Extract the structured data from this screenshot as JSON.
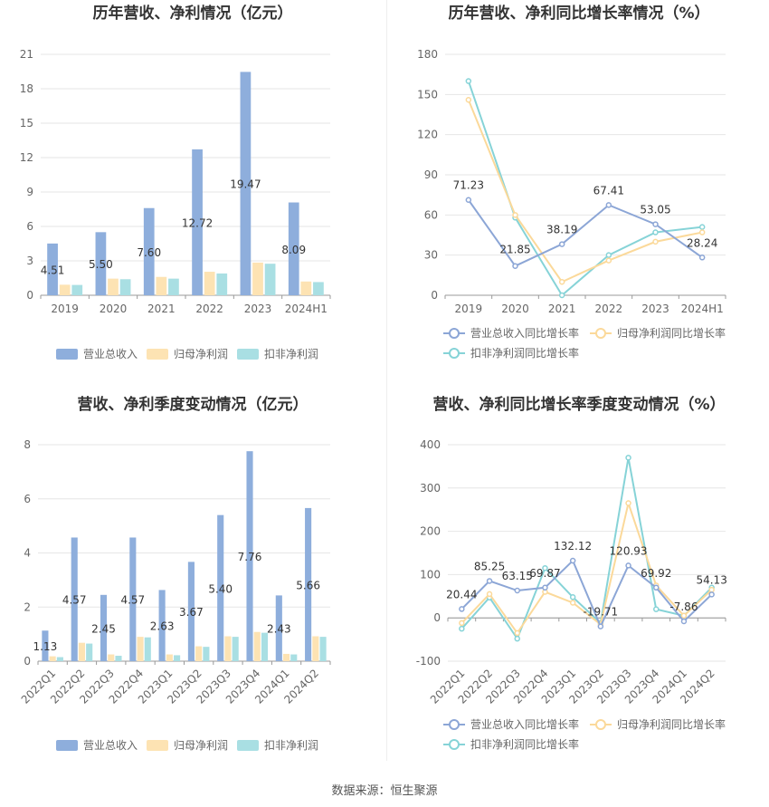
{
  "footer": {
    "source": "数据来源：恒生聚源"
  },
  "colors": {
    "revenue": "#8eaedc",
    "net": "#fde3b3",
    "deducted": "#a9dfe3",
    "rev_line": "#8ca6d6",
    "net_line": "#fbd99a",
    "ded_line": "#86d3d7"
  },
  "chart_data": [
    {
      "type": "bar",
      "title": "历年营收、净利情况（亿元）",
      "categories": [
        "2019",
        "2020",
        "2021",
        "2022",
        "2023",
        "2024H1"
      ],
      "ylim": [
        0,
        21
      ],
      "yticks": [
        "0",
        "3",
        "6",
        "9",
        "12",
        "15",
        "18",
        "21"
      ],
      "series": [
        {
          "name": "营业总收入",
          "values": [
            4.51,
            5.5,
            7.6,
            12.72,
            19.47,
            8.09
          ],
          "labels": [
            "4.51",
            "5.50",
            "7.60",
            "12.72",
            "19.47",
            "8.09"
          ]
        },
        {
          "name": "归母净利润",
          "values": [
            0.92,
            1.45,
            1.6,
            2.05,
            2.85,
            1.2
          ]
        },
        {
          "name": "扣非净利润",
          "values": [
            0.9,
            1.4,
            1.45,
            1.9,
            2.75,
            1.15
          ]
        }
      ],
      "legend": "bottom",
      "grid": true
    },
    {
      "type": "line",
      "title": "历年营收、净利同比增长率情况（%）",
      "categories": [
        "2019",
        "2020",
        "2021",
        "2022",
        "2023",
        "2024H1"
      ],
      "ylim": [
        0,
        180
      ],
      "yticks": [
        "0",
        "30",
        "60",
        "90",
        "120",
        "150",
        "180"
      ],
      "series": [
        {
          "name": "营业总收入同比增长率",
          "values": [
            71.23,
            21.85,
            38.19,
            67.41,
            53.05,
            28.24
          ],
          "labels": [
            "71.23",
            "21.85",
            "38.19",
            "67.41",
            "53.05",
            "28.24"
          ]
        },
        {
          "name": "归母净利润同比增长率",
          "values": [
            146,
            60,
            10,
            26,
            40,
            47
          ]
        },
        {
          "name": "扣非净利润同比增长率",
          "values": [
            160,
            58,
            0,
            30,
            47,
            51
          ]
        }
      ],
      "legend": "bottom",
      "grid": true
    },
    {
      "type": "bar",
      "title": "营收、净利季度变动情况（亿元）",
      "categories": [
        "2022Q1",
        "2022Q2",
        "2022Q3",
        "2022Q4",
        "2023Q1",
        "2023Q2",
        "2023Q3",
        "2023Q4",
        "2024Q1",
        "2024Q2"
      ],
      "ylim": [
        0,
        8
      ],
      "yticks": [
        "0",
        "2",
        "4",
        "6",
        "8"
      ],
      "series": [
        {
          "name": "营业总收入",
          "values": [
            1.13,
            4.57,
            2.45,
            4.57,
            2.63,
            3.67,
            5.4,
            7.76,
            2.43,
            5.66
          ],
          "labels": [
            "1.13",
            "4.57",
            "2.45",
            "4.57",
            "2.63",
            "3.67",
            "5.40",
            "7.76",
            "2.43",
            "5.66"
          ]
        },
        {
          "name": "归母净利润",
          "values": [
            0.18,
            0.68,
            0.25,
            0.9,
            0.25,
            0.55,
            0.92,
            1.08,
            0.27,
            0.92
          ]
        },
        {
          "name": "扣非净利润",
          "values": [
            0.15,
            0.65,
            0.2,
            0.88,
            0.22,
            0.53,
            0.9,
            1.05,
            0.25,
            0.9
          ]
        }
      ],
      "legend": "bottom",
      "grid": true
    },
    {
      "type": "line",
      "title": "营收、净利同比增长率季度变动情况（%）",
      "categories": [
        "2022Q1",
        "2022Q2",
        "2022Q3",
        "2022Q4",
        "2023Q1",
        "2023Q2",
        "2023Q3",
        "2023Q4",
        "2024Q1",
        "2024Q2"
      ],
      "ylim": [
        -100,
        400
      ],
      "yticks": [
        "-100",
        "0",
        "100",
        "200",
        "300",
        "400"
      ],
      "series": [
        {
          "name": "营业总收入同比增长率",
          "values": [
            20.44,
            85.25,
            63.15,
            69.87,
            132.12,
            -19.71,
            120.93,
            69.92,
            -7.86,
            54.13
          ],
          "labels": [
            "20.44",
            "85.25",
            "63.15",
            "69.87",
            "132.12",
            "-19.71",
            "120.93",
            "69.92",
            "-7.86",
            "54.13"
          ]
        },
        {
          "name": "归母净利润同比增长率",
          "values": [
            -12,
            55,
            -35,
            60,
            35,
            -15,
            265,
            75,
            5,
            65
          ]
        },
        {
          "name": "扣非净利润同比增长率",
          "values": [
            -25,
            47,
            -48,
            115,
            48,
            -12,
            370,
            20,
            5,
            70
          ]
        }
      ],
      "legend": "bottom",
      "grid": true
    }
  ]
}
